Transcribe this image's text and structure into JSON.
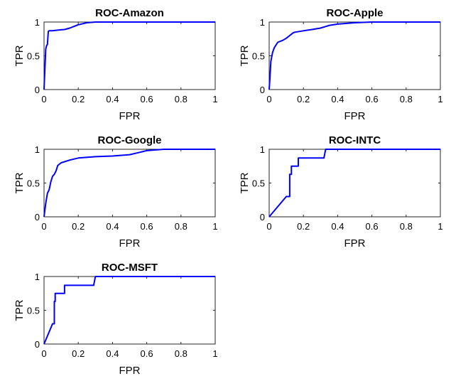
{
  "chart_data": [
    {
      "type": "line",
      "title": "ROC-Amazon",
      "xlabel": "FPR",
      "ylabel": "TPR",
      "xlim": [
        0,
        1
      ],
      "ylim": [
        0,
        1
      ],
      "xticks": [
        "0",
        "0.2",
        "0.4",
        "0.6",
        "0.8",
        "1"
      ],
      "yticks": [
        "0",
        "0.5",
        "1"
      ],
      "grid": false,
      "color": "#0000ff",
      "x": [
        0,
        0.005,
        0.01,
        0.015,
        0.02,
        0.025,
        0.03,
        0.05,
        0.08,
        0.1,
        0.12,
        0.15,
        0.18,
        0.2,
        0.25,
        0.3,
        0.35,
        0.4,
        1.0
      ],
      "y": [
        0,
        0.3,
        0.6,
        0.65,
        0.67,
        0.86,
        0.87,
        0.87,
        0.88,
        0.885,
        0.89,
        0.91,
        0.94,
        0.96,
        0.99,
        1.0,
        1.0,
        1.0,
        1.0
      ]
    },
    {
      "type": "line",
      "title": "ROC-Apple",
      "xlabel": "FPR",
      "ylabel": "TPR",
      "xlim": [
        0,
        1
      ],
      "ylim": [
        0,
        1
      ],
      "xticks": [
        "0",
        "0.2",
        "0.4",
        "0.6",
        "0.8",
        "1"
      ],
      "yticks": [
        "0",
        "0.5",
        "1"
      ],
      "grid": false,
      "color": "#0000ff",
      "x": [
        0,
        0.005,
        0.01,
        0.02,
        0.03,
        0.05,
        0.08,
        0.1,
        0.12,
        0.14,
        0.15,
        0.2,
        0.25,
        0.3,
        0.35,
        0.4,
        0.5,
        0.6,
        1.0
      ],
      "y": [
        0,
        0.2,
        0.42,
        0.55,
        0.62,
        0.7,
        0.73,
        0.76,
        0.8,
        0.84,
        0.85,
        0.87,
        0.89,
        0.91,
        0.95,
        0.97,
        0.99,
        1.0,
        1.0
      ]
    },
    {
      "type": "line",
      "title": "ROC-Google",
      "xlabel": "FPR",
      "ylabel": "TPR",
      "xlim": [
        0,
        1
      ],
      "ylim": [
        0,
        1
      ],
      "xticks": [
        "0",
        "0.2",
        "0.4",
        "0.6",
        "0.8",
        "1"
      ],
      "yticks": [
        "0",
        "0.5",
        "1"
      ],
      "grid": false,
      "color": "#0000ff",
      "x": [
        0,
        0.01,
        0.02,
        0.03,
        0.04,
        0.05,
        0.06,
        0.07,
        0.08,
        0.1,
        0.15,
        0.2,
        0.3,
        0.4,
        0.5,
        0.55,
        0.6,
        0.7,
        1.0
      ],
      "y": [
        0,
        0.2,
        0.35,
        0.4,
        0.52,
        0.6,
        0.63,
        0.68,
        0.76,
        0.8,
        0.84,
        0.87,
        0.89,
        0.9,
        0.92,
        0.95,
        0.98,
        1.0,
        1.0
      ]
    },
    {
      "type": "line",
      "title": "ROC-INTC",
      "xlabel": "FPR",
      "ylabel": "TPR",
      "xlim": [
        0,
        1
      ],
      "ylim": [
        0,
        1
      ],
      "xticks": [
        "0",
        "0.2",
        "0.4",
        "0.6",
        "0.8",
        "1"
      ],
      "yticks": [
        "0",
        "0.5",
        "1"
      ],
      "grid": false,
      "color": "#0000ff",
      "x": [
        0,
        0.1,
        0.12,
        0.12,
        0.13,
        0.13,
        0.17,
        0.17,
        0.32,
        0.33,
        1.0
      ],
      "y": [
        0,
        0.3,
        0.3,
        0.63,
        0.63,
        0.75,
        0.75,
        0.87,
        0.87,
        1.0,
        1.0
      ]
    },
    {
      "type": "line",
      "title": "ROC-MSFT",
      "xlabel": "FPR",
      "ylabel": "TPR",
      "xlim": [
        0,
        1
      ],
      "ylim": [
        0,
        1
      ],
      "xticks": [
        "0",
        "0.2",
        "0.4",
        "0.6",
        "0.8",
        "1"
      ],
      "yticks": [
        "0",
        "0.5",
        "1"
      ],
      "grid": false,
      "color": "#0000ff",
      "x": [
        0,
        0.05,
        0.06,
        0.06,
        0.065,
        0.065,
        0.12,
        0.12,
        0.29,
        0.3,
        1.0
      ],
      "y": [
        0,
        0.3,
        0.3,
        0.63,
        0.63,
        0.75,
        0.75,
        0.87,
        0.87,
        1.0,
        1.0
      ]
    }
  ]
}
